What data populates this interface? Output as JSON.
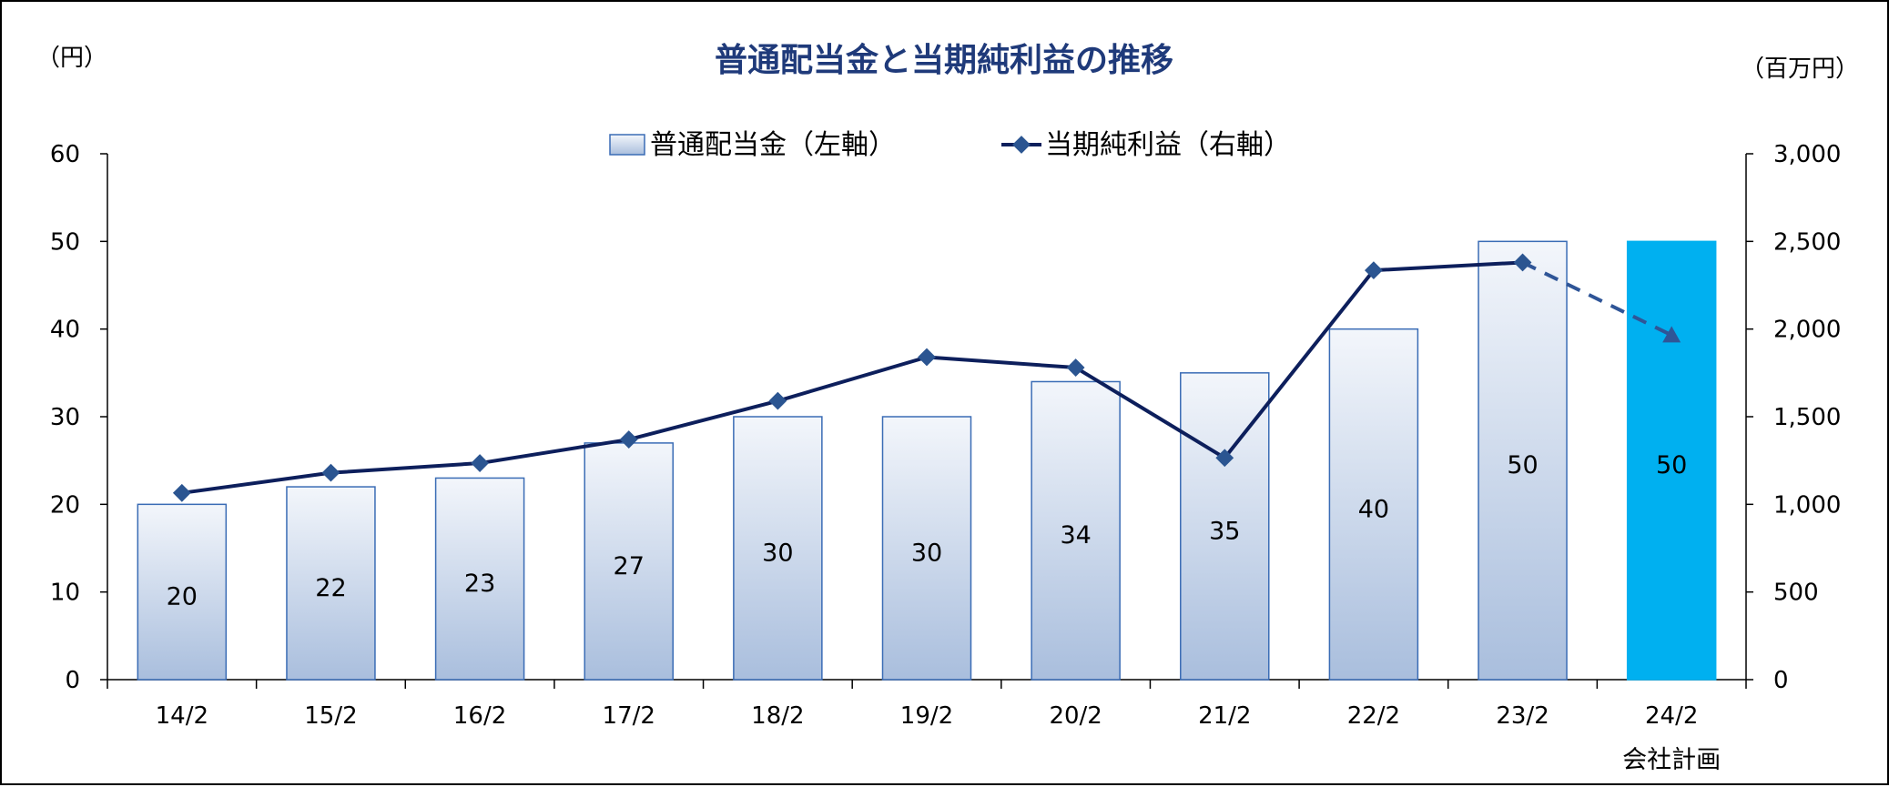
{
  "chart_data": {
    "type": "bar+line",
    "title": "普通配当金と当期純利益の推移",
    "left_axis": {
      "unit_label": "（円）",
      "ylim": [
        0,
        60
      ],
      "ticks": [
        "0",
        "10",
        "20",
        "30",
        "40",
        "50",
        "60"
      ]
    },
    "right_axis": {
      "unit_label": "（百万円）",
      "ylim": [
        0,
        3000
      ],
      "ticks": [
        "0",
        "500",
        "1,000",
        "1,500",
        "2,000",
        "2,500",
        "3,000"
      ]
    },
    "categories": [
      {
        "label": "14/2",
        "sub": ""
      },
      {
        "label": "15/2",
        "sub": ""
      },
      {
        "label": "16/2",
        "sub": ""
      },
      {
        "label": "17/2",
        "sub": ""
      },
      {
        "label": "18/2",
        "sub": ""
      },
      {
        "label": "19/2",
        "sub": ""
      },
      {
        "label": "20/2",
        "sub": ""
      },
      {
        "label": "21/2",
        "sub": ""
      },
      {
        "label": "22/2",
        "sub": ""
      },
      {
        "label": "23/2",
        "sub": ""
      },
      {
        "label": "24/2",
        "sub": "会社計画"
      }
    ],
    "series": [
      {
        "name": "普通配当金（左軸）",
        "type": "bar",
        "axis": "left",
        "values": [
          20,
          22,
          23,
          27,
          30,
          30,
          34,
          35,
          40,
          50,
          50
        ],
        "data_labels": [
          "20",
          "22",
          "23",
          "27",
          "30",
          "30",
          "34",
          "35",
          "40",
          "50",
          "50"
        ]
      },
      {
        "name": "当期純利益（右軸）",
        "type": "line",
        "axis": "right",
        "values": [
          1065,
          1180,
          1235,
          1370,
          1590,
          1840,
          1780,
          1265,
          2335,
          2380,
          1965
        ],
        "forecast_from_index": 9
      }
    ],
    "grid": false,
    "legend_position": "top-center",
    "colors": {
      "bar_gradient_top": "#f3f6fb",
      "bar_gradient_bottom": "#a9bedd",
      "bar_border": "#3a6cb5",
      "forecast_bar": "#00b0f0",
      "line": "#0d1f5c",
      "marker": "#2b5591",
      "forecast_line": "#2f5597",
      "title": "#1f3a7a",
      "axis": "#000000"
    }
  }
}
